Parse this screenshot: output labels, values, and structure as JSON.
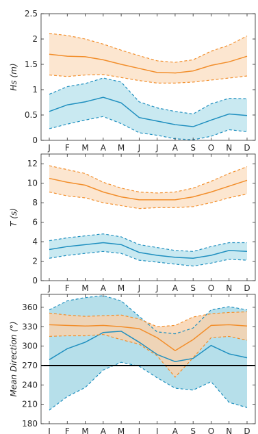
{
  "chart_data": [
    {
      "type": "area",
      "ylabel": "Hs (m)",
      "ylim": [
        0,
        2.5
      ],
      "yticks": [
        0,
        0.5,
        1,
        1.5,
        2,
        2.5
      ],
      "ytick_labels": [
        "0",
        "0.5",
        "1",
        "1.5",
        "2",
        "2.5"
      ],
      "categories": [
        "J",
        "F",
        "M",
        "A",
        "M",
        "J",
        "J",
        "A",
        "S",
        "O",
        "N",
        "D"
      ],
      "show_xtick_labels": true,
      "series": [
        {
          "color": "#f28e2b",
          "fill": "#fce2c8",
          "mean": [
            1.7,
            1.66,
            1.65,
            1.59,
            1.5,
            1.42,
            1.34,
            1.33,
            1.37,
            1.48,
            1.55,
            1.66
          ],
          "upper": [
            2.11,
            2.07,
            2.0,
            1.9,
            1.78,
            1.67,
            1.57,
            1.54,
            1.59,
            1.76,
            1.88,
            2.06
          ],
          "lower": [
            1.29,
            1.26,
            1.29,
            1.3,
            1.24,
            1.18,
            1.13,
            1.13,
            1.15,
            1.19,
            1.23,
            1.27
          ]
        },
        {
          "color": "#1f8fbf",
          "fill": "#bfe5ef",
          "mean": [
            0.57,
            0.7,
            0.76,
            0.85,
            0.74,
            0.45,
            0.38,
            0.31,
            0.27,
            0.4,
            0.52,
            0.49
          ],
          "upper": [
            0.91,
            1.06,
            1.12,
            1.23,
            1.15,
            0.76,
            0.64,
            0.57,
            0.52,
            0.72,
            0.83,
            0.82
          ],
          "lower": [
            0.23,
            0.32,
            0.4,
            0.47,
            0.33,
            0.15,
            0.1,
            0.03,
            0.01,
            0.08,
            0.21,
            0.17
          ]
        }
      ]
    },
    {
      "type": "area",
      "ylabel": "T (s)",
      "ylim": [
        0,
        13
      ],
      "yticks": [
        0,
        2,
        4,
        6,
        8,
        10,
        12
      ],
      "ytick_labels": [
        "0",
        "2",
        "4",
        "6",
        "8",
        "10",
        "12"
      ],
      "categories": [
        "J",
        "F",
        "M",
        "A",
        "M",
        "J",
        "J",
        "A",
        "S",
        "O",
        "N",
        "D"
      ],
      "show_xtick_labels": true,
      "series": [
        {
          "color": "#f28e2b",
          "fill": "#fce2c8",
          "mean": [
            10.5,
            10.1,
            9.8,
            9.1,
            8.6,
            8.3,
            8.3,
            8.3,
            8.6,
            9.1,
            9.7,
            10.3
          ],
          "upper": [
            11.8,
            11.4,
            11.0,
            10.1,
            9.5,
            9.1,
            9.0,
            9.1,
            9.5,
            10.2,
            11.0,
            11.7
          ],
          "lower": [
            9.1,
            8.7,
            8.5,
            8.0,
            7.7,
            7.4,
            7.5,
            7.5,
            7.6,
            8.0,
            8.5,
            8.9
          ]
        },
        {
          "color": "#1f8fbf",
          "fill": "#bfe5ef",
          "mean": [
            3.2,
            3.5,
            3.7,
            3.9,
            3.7,
            2.9,
            2.6,
            2.4,
            2.3,
            2.6,
            3.1,
            3.0
          ],
          "upper": [
            4.1,
            4.4,
            4.6,
            4.8,
            4.5,
            3.7,
            3.4,
            3.1,
            3.0,
            3.5,
            3.9,
            3.9
          ],
          "lower": [
            2.3,
            2.6,
            2.8,
            3.0,
            2.8,
            2.1,
            1.9,
            1.7,
            1.5,
            1.8,
            2.2,
            2.1
          ]
        }
      ]
    },
    {
      "type": "area",
      "ylabel": "Mean Direction (°)",
      "ylim": [
        180,
        380
      ],
      "yticks": [
        180,
        210,
        240,
        270,
        300,
        330,
        360
      ],
      "ytick_labels": [
        "180",
        "210",
        "240",
        "270",
        "300",
        "330",
        "360"
      ],
      "categories": [
        "J",
        "F",
        "M",
        "A",
        "M",
        "J",
        "J",
        "A",
        "S",
        "O",
        "N",
        "D"
      ],
      "show_xtick_labels": true,
      "reference_line": 270,
      "series": [
        {
          "color": "#1f8fbf",
          "fill": "#a9d9e6",
          "mean": [
            279,
            296,
            306,
            321,
            323,
            306,
            287,
            276,
            281,
            301,
            288,
            282
          ],
          "upper": [
            356,
            370,
            375,
            378,
            370,
            346,
            322,
            319,
            328,
            356,
            361,
            356
          ],
          "lower": [
            201,
            222,
            236,
            263,
            275,
            269,
            251,
            235,
            232,
            245,
            213,
            205
          ]
        },
        {
          "color": "#f28e2b",
          "fill": "#f8d2ae",
          "mean": [
            333,
            332,
            331,
            332,
            330,
            327,
            313,
            293,
            310,
            332,
            333,
            331
          ],
          "upper": [
            351,
            348,
            346,
            347,
            348,
            342,
            330,
            332,
            345,
            350,
            352,
            353
          ],
          "lower": [
            315,
            316,
            316,
            318,
            310,
            303,
            285,
            252,
            282,
            313,
            315,
            309
          ]
        }
      ]
    }
  ]
}
